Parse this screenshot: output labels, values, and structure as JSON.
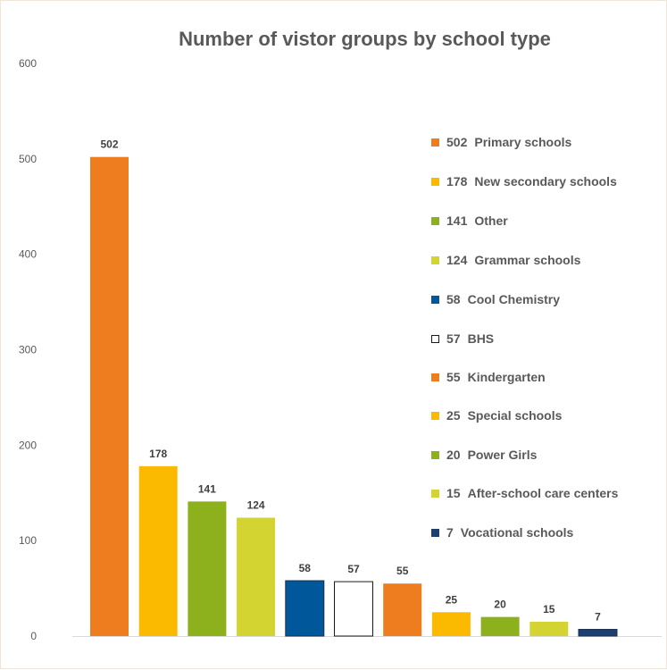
{
  "chart_data": {
    "type": "bar",
    "title": "Number of vistor groups by school type",
    "categories": [
      "Primary schools",
      "New secondary schools",
      "Other",
      "Grammar schools",
      "Cool Chemistry",
      "BHS",
      "Kindergarten",
      "Special schools",
      "Power Girls",
      "After-school care centers",
      "Vocational schools"
    ],
    "values": [
      502,
      178,
      141,
      124,
      58,
      57,
      55,
      25,
      20,
      15,
      7
    ],
    "colors": [
      "#ed7d1f",
      "#fbb900",
      "#8db11c",
      "#d3d431",
      "#00579a",
      "#ffffff",
      "#ed7d1f",
      "#fbb900",
      "#8db11c",
      "#d3d431",
      "#1b3f6f"
    ],
    "ylim": [
      0,
      600
    ],
    "yticks": [
      0,
      100,
      200,
      300,
      400,
      500,
      600
    ],
    "grid": false,
    "legend_position": "right"
  }
}
